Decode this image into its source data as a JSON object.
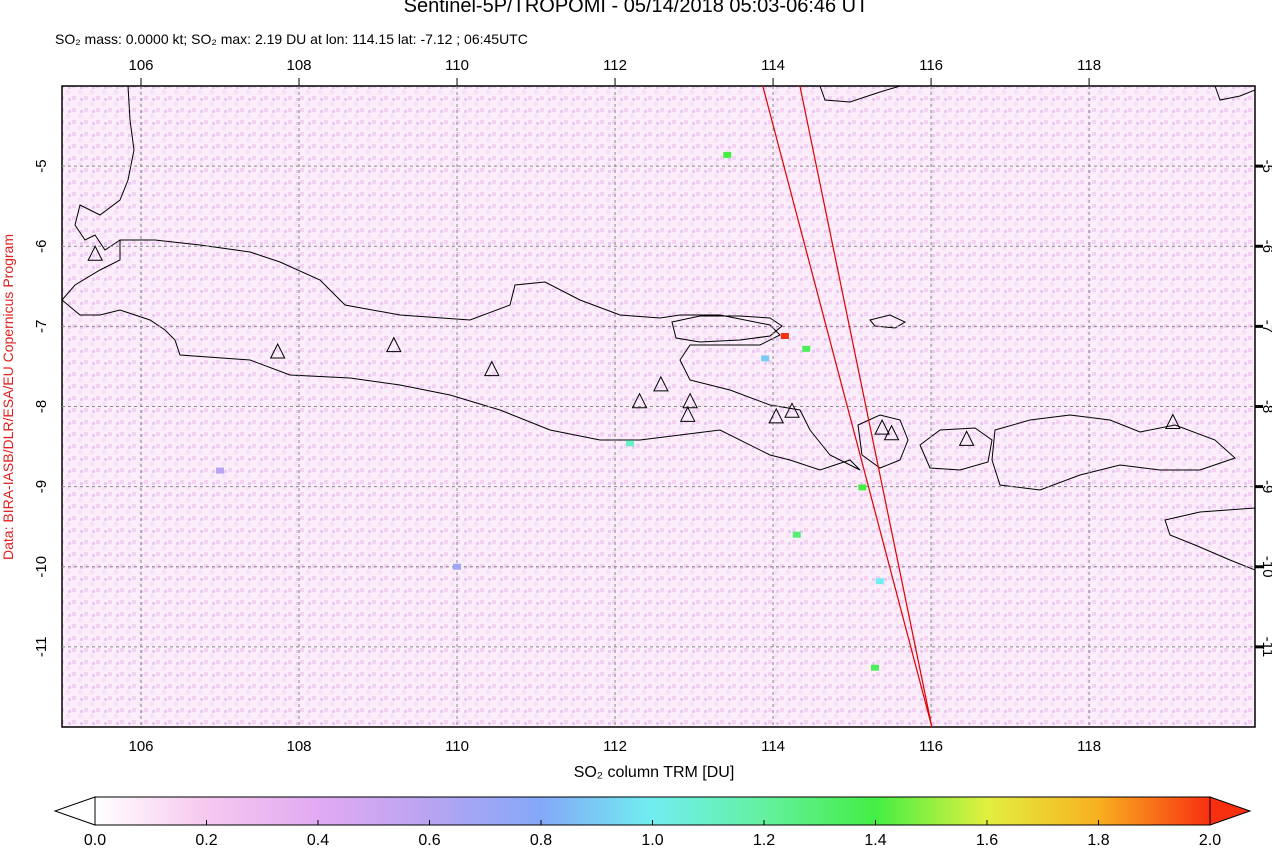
{
  "chart_data": {
    "type": "map",
    "title": "Sentinel-5P/TROPOMI - 05/14/2018 05:03-06:46 UT",
    "subtitle": "SO₂ mass: 0.0000 kt; SO₂ max: 2.19 DU at lon: 114.15 lat: -7.12 ; 06:45UTC",
    "credit": "Data: BIRA-IASB/DLR/ESA/EU Copernicus Program",
    "colorbar_label": "SO₂ column TRM [DU]",
    "xlim": [
      105,
      120.1
    ],
    "ylim": [
      -12,
      -4
    ],
    "xticks": [
      106,
      108,
      110,
      112,
      114,
      116,
      118
    ],
    "yticks": [
      -5,
      -6,
      -7,
      -8,
      -9,
      -10,
      -11
    ],
    "grid": true,
    "colorbar": {
      "lim": [
        0,
        2
      ],
      "ticks": [
        {
          "value": 0,
          "label": "0.0"
        },
        {
          "value": 0.2,
          "label": "0.2"
        },
        {
          "value": 0.4,
          "label": "0.4"
        },
        {
          "value": 0.6,
          "label": "0.6"
        },
        {
          "value": 0.8,
          "label": "0.8"
        },
        {
          "value": 1,
          "label": "1.0"
        },
        {
          "value": 1.2,
          "label": "1.2"
        },
        {
          "value": 1.4,
          "label": "1.4"
        },
        {
          "value": 1.6,
          "label": "1.6"
        },
        {
          "value": 1.8,
          "label": "1.8"
        },
        {
          "value": 2,
          "label": "2.0"
        }
      ],
      "colors": [
        "#ffffff",
        "#f6c8ef",
        "#e2aaf2",
        "#b8a4f2",
        "#84a8f8",
        "#70eef0",
        "#64f0a0",
        "#44ee44",
        "#e2f040",
        "#f8b020",
        "#f83010"
      ]
    },
    "volcanoes": {
      "lon": [
        105.42,
        107.73,
        109.2,
        110.44,
        112.31,
        112.58,
        112.95,
        112.92,
        114.04,
        114.24,
        115.38,
        115.5,
        116.45,
        119.06
      ],
      "lat": [
        -6.1,
        -7.32,
        -7.24,
        -7.54,
        -7.94,
        -7.73,
        -7.94,
        -8.11,
        -8.13,
        -8.06,
        -8.27,
        -8.34,
        -8.41,
        -8.2
      ]
    },
    "pixels": {
      "lon": [
        114.15,
        113.42,
        114.42,
        115.13,
        115.35,
        115.29,
        112.19,
        110.0,
        107.0,
        113.9,
        114.3
      ],
      "lat": [
        -7.12,
        -4.86,
        -7.28,
        -9.01,
        -10.18,
        -11.26,
        -8.46,
        -10.0,
        -8.8,
        -7.4,
        -9.6
      ],
      "values": [
        2.19,
        1.4,
        1.35,
        1.4,
        1.0,
        1.35,
        1.1,
        0.7,
        0.6,
        0.9,
        1.3
      ]
    },
    "orbit_edges": {
      "color": "#e00000",
      "lines": [
        {
          "lon": [
            113.87,
            116.01
          ],
          "lat": [
            -4,
            -12
          ]
        },
        {
          "lon": [
            114.34,
            116.01
          ],
          "lat": [
            -4,
            -12
          ]
        }
      ]
    }
  }
}
